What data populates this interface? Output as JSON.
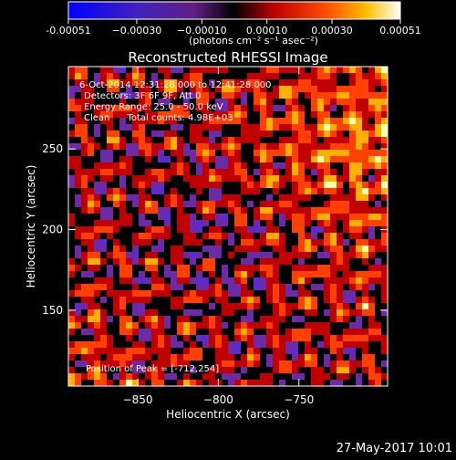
{
  "colorbar": {
    "ticks": [
      {
        "value": -0.00051,
        "label": "-0.00051"
      },
      {
        "value": -0.0003,
        "label": "−0.00030"
      },
      {
        "value": -0.0001,
        "label": "−0.00010"
      },
      {
        "value": 0.0001,
        "label": "0.00010"
      },
      {
        "value": 0.0003,
        "label": "0.00030"
      },
      {
        "value": 0.00051,
        "label": "0.00051"
      }
    ],
    "range": [
      -0.00051,
      0.00051
    ],
    "units_label": "(photons cm⁻² s⁻¹ asec⁻²)"
  },
  "chart_data": {
    "type": "heatmap",
    "title": "Reconstructed RHESSI Image",
    "xlabel": "Heliocentric X (arcsec)",
    "ylabel": "Heliocentric Y (arcsec)",
    "xlim": [
      -893,
      -695
    ],
    "ylim": [
      103,
      301
    ],
    "x_ticks": [
      {
        "value": -850,
        "label": "−850"
      },
      {
        "value": -800,
        "label": "−800"
      },
      {
        "value": -750,
        "label": "−750"
      }
    ],
    "y_ticks": [
      {
        "value": 150,
        "label": "150"
      },
      {
        "value": 200,
        "label": "200"
      },
      {
        "value": 250,
        "label": "250"
      }
    ],
    "info_lines": [
      "6-Oct-2014 12:31:28.000 to 12:41:28.000",
      "Detectors: 3F 6F 9F, Att 0",
      "Energy Range: 25.0 - 50.0 keV",
      "Clean      Total counts: 4.98E+03"
    ],
    "peak_label": "Position of Peak = [-712,254]",
    "peak_position": [
      -712,
      254
    ],
    "color_scale": [
      "#1a1aff",
      "#5a2bd0",
      "#6b2aa8",
      "#000000",
      "#c00000",
      "#ff4000",
      "#ffb000",
      "#ffffb0"
    ]
  },
  "footer": {
    "date": "27-May-2017 10:01"
  }
}
